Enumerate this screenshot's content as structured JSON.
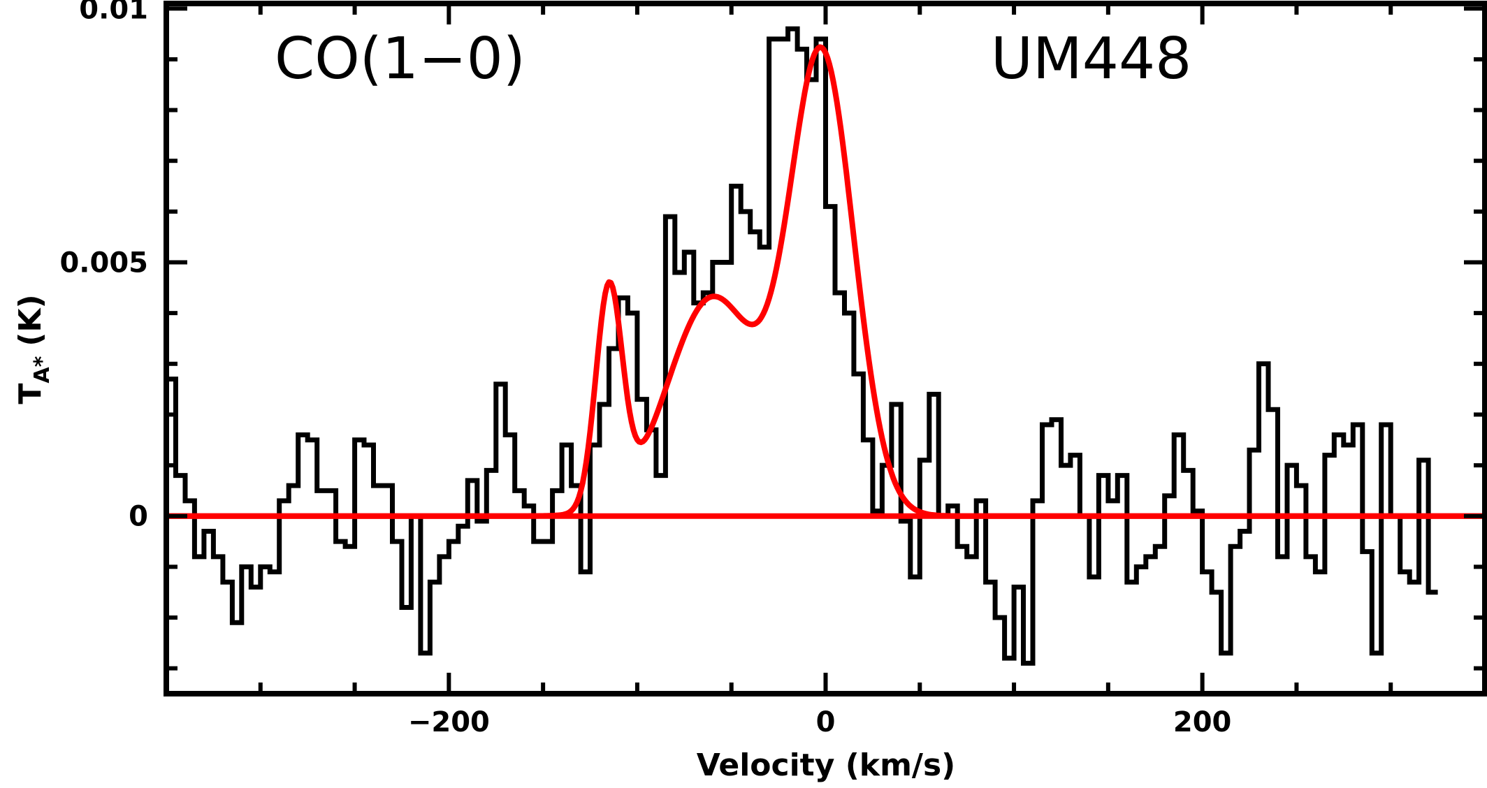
{
  "chart_data": {
    "type": "line",
    "title": "",
    "annotations": {
      "line": "CO(1−0)",
      "source": "UM448"
    },
    "xlabel": "Velocity (km/s)",
    "ylabel_main": "T",
    "ylabel_sub": "A*",
    "ylabel_unit": "(K)",
    "xlim": [
      -350,
      350
    ],
    "ylim": [
      -0.0035,
      0.0101
    ],
    "x_ticks": [
      {
        "value": -200,
        "label": "−200"
      },
      {
        "value": 0,
        "label": "0"
      },
      {
        "value": 200,
        "label": "200"
      }
    ],
    "y_ticks": [
      {
        "value": 0,
        "label": "0"
      },
      {
        "value": 0.005,
        "label": "0.005"
      },
      {
        "value": 0.01,
        "label": "0.01"
      }
    ],
    "x_minor_step": 50,
    "y_minor_step": 0.001,
    "colors": {
      "spectrum": "#000000",
      "fit": "#ff0000",
      "axes": "#000000"
    },
    "series": [
      {
        "style": "step",
        "channel_width": 5,
        "x_start": -350,
        "values": [
          0.0027,
          0.0008,
          0.0003,
          -0.0008,
          -0.0003,
          -0.0008,
          -0.0013,
          -0.0021,
          -0.001,
          -0.0014,
          -0.001,
          -0.0011,
          0.0003,
          0.0006,
          0.0016,
          0.0015,
          0.0005,
          0.0005,
          -0.0005,
          -0.0006,
          0.0015,
          0.0014,
          0.0006,
          0.0006,
          -0.0005,
          -0.0018,
          0.0,
          -0.0027,
          -0.0013,
          -0.0008,
          -0.0005,
          -0.0002,
          0.0007,
          -0.0001,
          0.0009,
          0.0026,
          0.0016,
          0.0005,
          0.0002,
          -0.0005,
          -0.0005,
          0.0005,
          0.0014,
          0.0006,
          -0.0011,
          0.0014,
          0.0022,
          0.0033,
          0.0043,
          0.004,
          0.0023,
          0.0017,
          0.0008,
          0.0059,
          0.0048,
          0.0052,
          0.0042,
          0.0044,
          0.005,
          0.005,
          0.0065,
          0.006,
          0.0056,
          0.0053,
          0.0094,
          0.0094,
          0.0096,
          0.0092,
          0.0086,
          0.0094,
          0.0061,
          0.0044,
          0.004,
          0.0028,
          0.0015,
          0.0001,
          0.001,
          0.0022,
          -0.0001,
          -0.0012,
          0.0011,
          0.0024,
          0.0,
          0.0002,
          -0.0006,
          -0.0008,
          0.0003,
          -0.0013,
          -0.002,
          -0.0028,
          -0.0014,
          -0.0029,
          0.0003,
          0.0018,
          0.0019,
          0.001,
          0.0012,
          0.0,
          -0.0012,
          0.0008,
          0.0003,
          0.0008,
          -0.0013,
          -0.001,
          -0.0008,
          -0.0006,
          0.0004,
          0.0016,
          0.0009,
          0.0001,
          -0.0011,
          -0.0015,
          -0.0027,
          -0.0006,
          -0.0003,
          0.0013,
          0.003,
          0.0021,
          -0.0008,
          0.001,
          0.0006,
          -0.0008,
          -0.0011,
          0.0012,
          0.0016,
          0.0014,
          0.0018,
          -0.0007,
          -0.0027,
          0.0018,
          0.0,
          -0.0011,
          -0.0013,
          0.0011,
          -0.0015
        ]
      },
      {
        "style": "line",
        "components": [
          {
            "amp": 0.0043,
            "center": -115,
            "sigma": 7
          },
          {
            "amp": 0.0043,
            "center": -60,
            "sigma": 24
          },
          {
            "amp": 0.009,
            "center": -2,
            "sigma": 17
          }
        ]
      }
    ]
  }
}
